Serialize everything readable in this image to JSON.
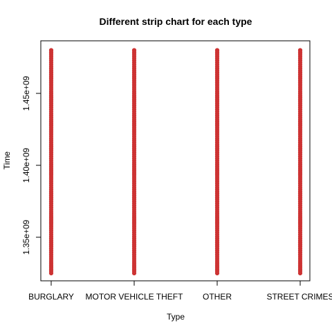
{
  "chart_data": {
    "type": "scatter",
    "subtype": "strip",
    "title": "Different strip chart for each type",
    "xlabel": "Type",
    "ylabel": "Time",
    "categories": [
      "BURGLARY",
      "MOTOR VEHICLE THEFT",
      "OTHER",
      "STREET CRIMES"
    ],
    "ylim": [
      1325000000,
      1480000000
    ],
    "y_ticks": [
      1350000000,
      1400000000,
      1450000000
    ],
    "y_tick_labels": [
      "1.35e+09",
      "1.40e+09",
      "1.45e+09"
    ],
    "point_color": "#cd3333",
    "grid": false,
    "legend": "none",
    "y_range_per_category": [
      {
        "category": "BURGLARY",
        "min": 1325000000,
        "max": 1480000000
      },
      {
        "category": "MOTOR VEHICLE THEFT",
        "min": 1325000000,
        "max": 1480000000
      },
      {
        "category": "OTHER",
        "min": 1325000000,
        "max": 1480000000
      },
      {
        "category": "STREET CRIMES",
        "min": 1325000000,
        "max": 1480000000
      }
    ]
  }
}
